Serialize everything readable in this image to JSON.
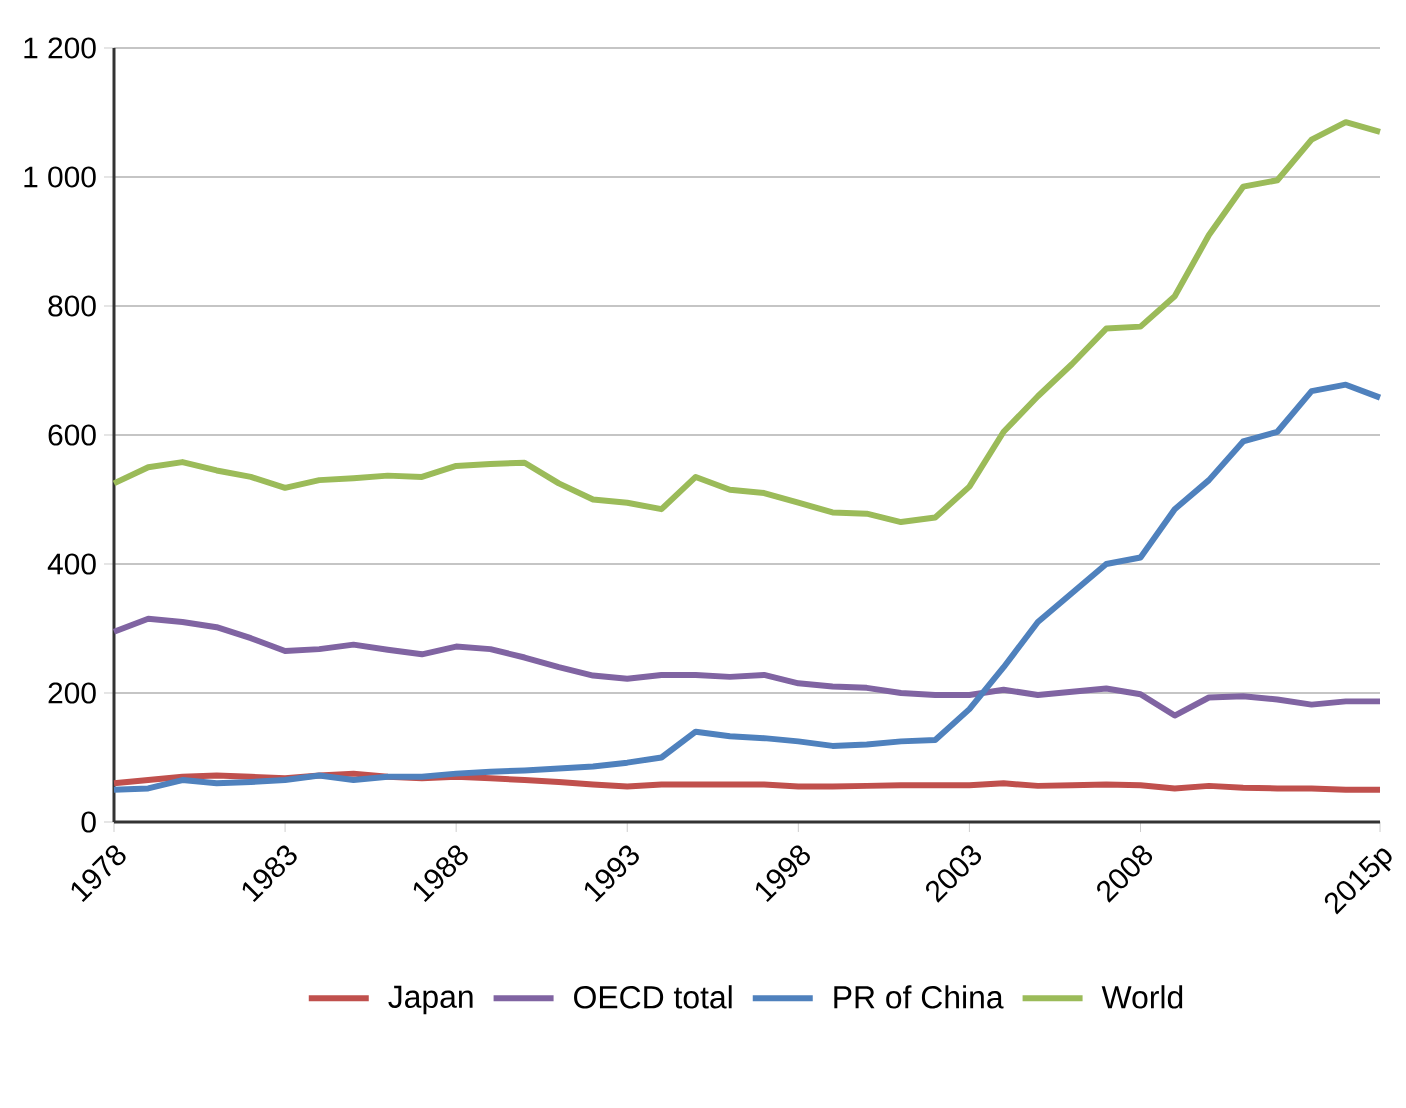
{
  "chart_data": {
    "type": "line",
    "categories": [
      "1978",
      null,
      null,
      null,
      null,
      "1983",
      null,
      null,
      null,
      null,
      "1988",
      null,
      null,
      null,
      null,
      "1993",
      null,
      null,
      null,
      null,
      "1998",
      null,
      null,
      null,
      null,
      "2003",
      null,
      null,
      null,
      null,
      "2008",
      null,
      null,
      null,
      null,
      null,
      null,
      "2015p"
    ],
    "series": [
      {
        "name": "Japan",
        "color": "#c0504d",
        "values": [
          60,
          65,
          70,
          72,
          70,
          68,
          72,
          75,
          70,
          68,
          70,
          68,
          65,
          62,
          58,
          55,
          58,
          58,
          58,
          58,
          55,
          55,
          56,
          57,
          57,
          57,
          60,
          56,
          57,
          58,
          57,
          52,
          56,
          53,
          52,
          52,
          50,
          50
        ]
      },
      {
        "name": "OECD total",
        "color": "#8064a2",
        "values": [
          295,
          315,
          310,
          302,
          285,
          265,
          268,
          275,
          267,
          260,
          272,
          268,
          255,
          240,
          227,
          222,
          228,
          228,
          225,
          228,
          215,
          210,
          208,
          200,
          197,
          197,
          205,
          197,
          202,
          207,
          198,
          165,
          193,
          195,
          190,
          182,
          187,
          187
        ]
      },
      {
        "name": "PR of China",
        "color": "#4f81bd",
        "values": [
          50,
          52,
          65,
          60,
          62,
          65,
          72,
          65,
          70,
          70,
          75,
          78,
          80,
          83,
          86,
          92,
          100,
          140,
          133,
          130,
          125,
          118,
          120,
          125,
          127,
          175,
          240,
          310,
          355,
          400,
          410,
          485,
          530,
          590,
          605,
          668,
          678,
          658
        ]
      },
      {
        "name": "World",
        "color": "#9bbb59",
        "values": [
          525,
          550,
          558,
          545,
          535,
          518,
          530,
          533,
          537,
          535,
          552,
          555,
          557,
          525,
          500,
          495,
          485,
          535,
          515,
          510,
          495,
          480,
          478,
          465,
          472,
          520,
          605,
          660,
          710,
          765,
          768,
          815,
          910,
          985,
          995,
          1058,
          1085,
          1070
        ]
      }
    ],
    "ylim": [
      0,
      1200
    ],
    "yticks": [
      0,
      200,
      400,
      600,
      800,
      {
        "value": 1000,
        "label": "1 000"
      },
      {
        "value": 1200,
        "label": "1 200"
      }
    ],
    "grid": "y",
    "legend": "bottom",
    "marker": "none",
    "line_style": "solid"
  }
}
